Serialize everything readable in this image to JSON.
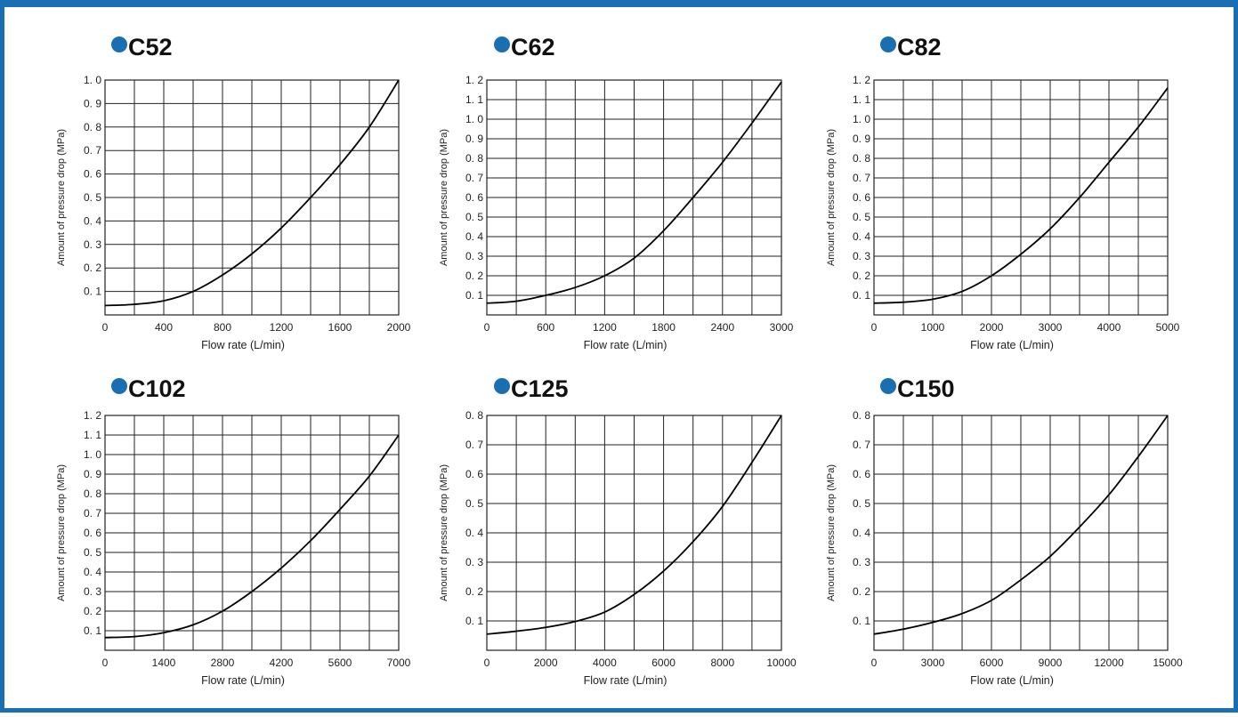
{
  "accent_color": "#1a6fb3",
  "bullet_color": "#1a6fb3",
  "chart_data": [
    {
      "type": "line",
      "title": "C52",
      "xlabel": "Flow rate (L/min)",
      "ylabel": "Amount of pressure drop (MPa)",
      "xlim": [
        0,
        2000
      ],
      "ylim": [
        0,
        1.0
      ],
      "x_ticks": [
        0,
        400,
        800,
        1200,
        1600,
        2000
      ],
      "x_grid_step": 200,
      "y_ticks": [
        "0. 1",
        "0. 2",
        "0. 3",
        "0. 4",
        "0. 5",
        "0. 6",
        "0. 7",
        "0. 8",
        "0. 9",
        "1. 0"
      ],
      "y_tick_values": [
        0.1,
        0.2,
        0.3,
        0.4,
        0.5,
        0.6,
        0.7,
        0.8,
        0.9,
        1.0
      ],
      "grid": true,
      "series": [
        {
          "x": [
            0,
            200,
            400,
            600,
            800,
            1000,
            1200,
            1400,
            1600,
            1800,
            2000
          ],
          "y": [
            0.04,
            0.045,
            0.06,
            0.1,
            0.17,
            0.26,
            0.37,
            0.5,
            0.64,
            0.8,
            1.0
          ]
        }
      ]
    },
    {
      "type": "line",
      "title": "C62",
      "xlabel": "Flow rate (L/min)",
      "ylabel": "Amount of pressure drop (MPa)",
      "xlim": [
        0,
        3000
      ],
      "ylim": [
        0,
        1.2
      ],
      "x_ticks": [
        0,
        600,
        1200,
        1800,
        2400,
        3000
      ],
      "x_grid_step": 300,
      "y_ticks": [
        "0. 1",
        "0. 2",
        "0. 3",
        "0. 4",
        "0. 5",
        "0. 6",
        "0. 7",
        "0. 8",
        "0. 9",
        "1. 0",
        "1. 1",
        "1. 2"
      ],
      "y_tick_values": [
        0.1,
        0.2,
        0.3,
        0.4,
        0.5,
        0.6,
        0.7,
        0.8,
        0.9,
        1.0,
        1.1,
        1.2
      ],
      "grid": true,
      "series": [
        {
          "x": [
            0,
            300,
            600,
            900,
            1200,
            1500,
            1800,
            2100,
            2400,
            2700,
            3000
          ],
          "y": [
            0.06,
            0.07,
            0.1,
            0.14,
            0.2,
            0.29,
            0.43,
            0.6,
            0.78,
            0.98,
            1.19
          ]
        }
      ]
    },
    {
      "type": "line",
      "title": "C82",
      "xlabel": "Flow rate (L/min)",
      "ylabel": "Amount of pressure drop (MPa)",
      "xlim": [
        0,
        5000
      ],
      "ylim": [
        0,
        1.2
      ],
      "x_ticks": [
        0,
        1000,
        2000,
        3000,
        4000,
        5000
      ],
      "x_grid_step": 500,
      "y_ticks": [
        "0. 1",
        "0. 2",
        "0. 3",
        "0. 4",
        "0. 5",
        "0. 6",
        "0. 7",
        "0. 8",
        "0. 9",
        "1. 0",
        "1. 1",
        "1. 2"
      ],
      "y_tick_values": [
        0.1,
        0.2,
        0.3,
        0.4,
        0.5,
        0.6,
        0.7,
        0.8,
        0.9,
        1.0,
        1.1,
        1.2
      ],
      "grid": true,
      "series": [
        {
          "x": [
            0,
            500,
            1000,
            1500,
            2000,
            2500,
            3000,
            3500,
            4000,
            4500,
            5000
          ],
          "y": [
            0.06,
            0.065,
            0.08,
            0.12,
            0.2,
            0.31,
            0.44,
            0.6,
            0.78,
            0.96,
            1.16
          ]
        }
      ]
    },
    {
      "type": "line",
      "title": "C102",
      "xlabel": "Flow rate (L/min)",
      "ylabel": "Amount of pressure drop (MPa)",
      "xlim": [
        0,
        7000
      ],
      "ylim": [
        0,
        1.2
      ],
      "x_ticks": [
        0,
        1400,
        2800,
        4200,
        5600,
        7000
      ],
      "x_grid_step": 700,
      "y_ticks": [
        "0. 1",
        "0. 2",
        "0. 3",
        "0. 4",
        "0. 5",
        "0. 6",
        "0. 7",
        "0. 8",
        "0. 9",
        "1. 0",
        "1. 1",
        "1. 2"
      ],
      "y_tick_values": [
        0.1,
        0.2,
        0.3,
        0.4,
        0.5,
        0.6,
        0.7,
        0.8,
        0.9,
        1.0,
        1.1,
        1.2
      ],
      "grid": true,
      "series": [
        {
          "x": [
            0,
            700,
            1400,
            2100,
            2800,
            3500,
            4200,
            4900,
            5600,
            6300,
            7000
          ],
          "y": [
            0.065,
            0.07,
            0.09,
            0.13,
            0.2,
            0.3,
            0.42,
            0.56,
            0.72,
            0.89,
            1.1
          ]
        }
      ]
    },
    {
      "type": "line",
      "title": "C125",
      "xlabel": "Flow rate (L/min)",
      "ylabel": "Amount of pressure drop (MPa)",
      "xlim": [
        0,
        10000
      ],
      "ylim": [
        0,
        0.8
      ],
      "x_ticks": [
        0,
        2000,
        4000,
        6000,
        8000,
        10000
      ],
      "x_grid_step": 1000,
      "y_ticks": [
        "0. 1",
        "0. 2",
        "0. 3",
        "0. 4",
        "0. 5",
        "0. 6",
        "0. 7",
        "0. 8"
      ],
      "y_tick_values": [
        0.1,
        0.2,
        0.3,
        0.4,
        0.5,
        0.6,
        0.7,
        0.8
      ],
      "grid": true,
      "series": [
        {
          "x": [
            0,
            1000,
            2000,
            3000,
            4000,
            5000,
            6000,
            7000,
            8000,
            9000,
            10000
          ],
          "y": [
            0.055,
            0.065,
            0.078,
            0.098,
            0.13,
            0.19,
            0.27,
            0.37,
            0.49,
            0.64,
            0.8
          ]
        }
      ]
    },
    {
      "type": "line",
      "title": "C150",
      "xlabel": "Flow rate (L/min)",
      "ylabel": "Amount of pressure drop (MPa)",
      "xlim": [
        0,
        15000
      ],
      "ylim": [
        0,
        0.8
      ],
      "x_ticks": [
        0,
        3000,
        6000,
        9000,
        12000,
        15000
      ],
      "x_grid_step": 1500,
      "y_ticks": [
        "0. 1",
        "0. 2",
        "0. 3",
        "0. 4",
        "0. 5",
        "0. 6",
        "0. 7",
        "0. 8"
      ],
      "y_tick_values": [
        0.1,
        0.2,
        0.3,
        0.4,
        0.5,
        0.6,
        0.7,
        0.8
      ],
      "grid": true,
      "series": [
        {
          "x": [
            0,
            1500,
            3000,
            4500,
            6000,
            7500,
            9000,
            10500,
            12000,
            13500,
            15000
          ],
          "y": [
            0.055,
            0.072,
            0.095,
            0.125,
            0.17,
            0.24,
            0.32,
            0.42,
            0.53,
            0.66,
            0.8
          ]
        }
      ]
    }
  ]
}
